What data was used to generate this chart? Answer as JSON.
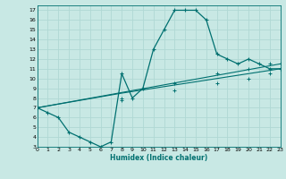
{
  "xlabel": "Humidex (Indice chaleur)",
  "bg_color": "#c8e8e4",
  "grid_color": "#b0d8d4",
  "line_color": "#007070",
  "xlim": [
    0,
    23
  ],
  "ylim": [
    3,
    17.5
  ],
  "xticks": [
    0,
    1,
    2,
    3,
    4,
    5,
    6,
    7,
    8,
    9,
    10,
    11,
    12,
    13,
    14,
    15,
    16,
    17,
    18,
    19,
    20,
    21,
    22,
    23
  ],
  "yticks": [
    3,
    4,
    5,
    6,
    7,
    8,
    9,
    10,
    11,
    12,
    13,
    14,
    15,
    16,
    17
  ],
  "curve_x": [
    0,
    1,
    2,
    3,
    4,
    5,
    6,
    7,
    8,
    9,
    10,
    11,
    12,
    13,
    14,
    15,
    16,
    17,
    18,
    19,
    20,
    21,
    22,
    23
  ],
  "curve_y": [
    7,
    6.5,
    6,
    4.5,
    4,
    3.5,
    3,
    3.5,
    10.5,
    8,
    9,
    13,
    15,
    17,
    17,
    17,
    16,
    12.5,
    12,
    11.5,
    12,
    11.5,
    11,
    11
  ],
  "line2_x": [
    0,
    23
  ],
  "line2_y": [
    7,
    11.5
  ],
  "line3_x": [
    0,
    8,
    23
  ],
  "line3_y": [
    7,
    8.5,
    11
  ],
  "marker_curve_x": [
    0,
    1,
    3,
    4,
    5,
    6,
    7,
    8,
    9,
    10,
    11,
    12,
    13,
    14,
    15,
    16,
    17,
    18,
    19,
    20,
    21,
    22,
    23
  ],
  "marker_curve_y": [
    7,
    6.5,
    4.5,
    4,
    3.5,
    3,
    3.5,
    10.5,
    8,
    9,
    13,
    15,
    17,
    17,
    17,
    16,
    12.5,
    12,
    11.5,
    12,
    11.5,
    11,
    11
  ],
  "marker2_x": [
    0,
    8,
    13,
    17,
    20,
    22,
    23
  ],
  "marker2_y": [
    7,
    8,
    9.5,
    10.5,
    11,
    11.5,
    11.5
  ],
  "marker3_x": [
    0,
    8,
    13,
    17,
    20,
    22,
    23
  ],
  "marker3_y": [
    7,
    7.8,
    8.8,
    9.5,
    10,
    10.5,
    11
  ]
}
